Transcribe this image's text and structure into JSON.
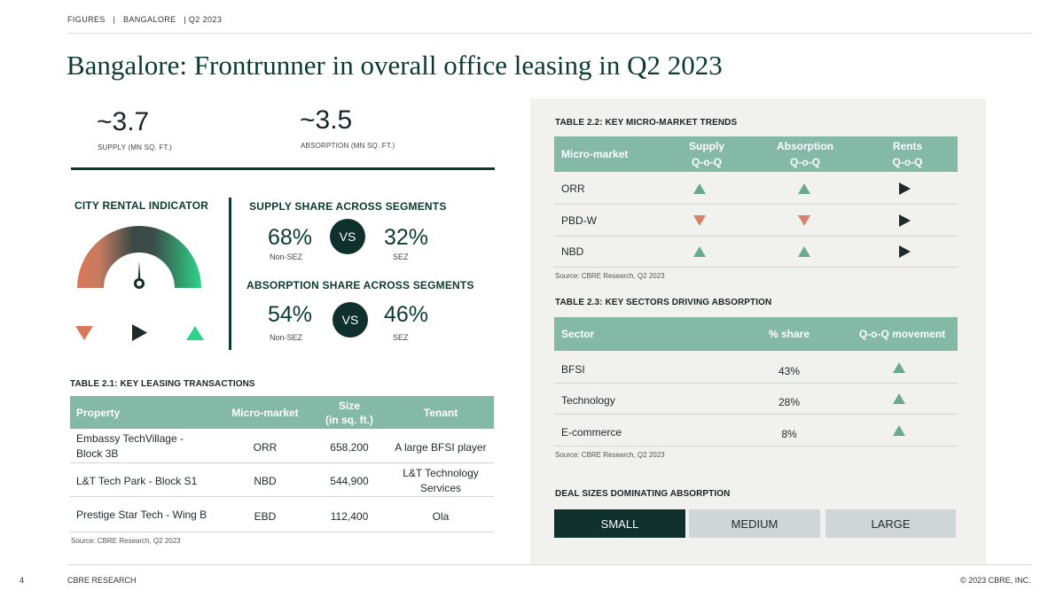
{
  "header": {
    "breadcrumb": "FIGURES   |   BANGALORE   | Q2 2023",
    "title": "Bangalore: Frontrunner in overall office leasing in Q2 2023"
  },
  "kpis": [
    {
      "value": "~3.7",
      "label": "SUPPLY (MN SQ. FT.)"
    },
    {
      "value": "~3.5",
      "label": "ABSORPTION (MN SQ. FT.)"
    }
  ],
  "rental_indicator": {
    "title": "CITY RENTAL INDICATOR",
    "colors": {
      "low": "#d9785b",
      "mid": "#3b4a47",
      "high": "#2ed38a"
    },
    "icons": [
      "down-triangle-icon",
      "right-triangle-icon",
      "up-triangle-icon"
    ]
  },
  "supply_share": {
    "title": "SUPPLY SHARE ACROSS SEGMENTS",
    "left_value": "68%",
    "left_label": "Non-SEZ",
    "vs": "VS",
    "right_value": "32%",
    "right_label": "SEZ"
  },
  "absorption_share": {
    "title": "ABSORPTION SHARE ACROSS SEGMENTS",
    "left_value": "54%",
    "left_label": "Non-SEZ",
    "vs": "VS",
    "right_value": "46%",
    "right_label": "SEZ"
  },
  "table21": {
    "title": "TABLE 2.1: KEY LEASING TRANSACTIONS",
    "headers": [
      "Property",
      "Micro-market",
      "Size\n(in sq. ft.)",
      "Tenant"
    ],
    "rows": [
      [
        "Embassy TechVillage -\nBlock 3B",
        "ORR",
        "658,200",
        "A large BFSI player"
      ],
      [
        "L&T Tech Park - Block S1",
        "NBD",
        "544,900",
        "L&T Technology\nServices"
      ],
      [
        "Prestige Star Tech - Wing B",
        "EBD",
        "112,400",
        "Ola"
      ]
    ],
    "source": "Source: CBRE Research, Q2 2023"
  },
  "table22": {
    "title": "TABLE 2.2: KEY MICRO-MARKET TRENDS",
    "headers": [
      "Micro-market",
      "Supply\nQ-o-Q",
      "Absorption\nQ-o-Q",
      "Rents\nQ-o-Q"
    ],
    "rows": [
      {
        "name": "ORR",
        "trends": [
          "up",
          "up",
          "flat"
        ]
      },
      {
        "name": "PBD-W",
        "trends": [
          "down",
          "down",
          "flat"
        ]
      },
      {
        "name": "NBD",
        "trends": [
          "up",
          "up",
          "flat"
        ]
      }
    ],
    "source": "Source: CBRE Research, Q2 2023"
  },
  "table23": {
    "title": "TABLE 2.3: KEY SECTORS DRIVING ABSORPTION",
    "headers": [
      "Sector",
      "% share",
      "Q-o-Q movement"
    ],
    "rows": [
      {
        "sector": "BFSI",
        "share": "43%",
        "movement": "up"
      },
      {
        "sector": "Technology",
        "share": "28%",
        "movement": "up"
      },
      {
        "sector": "E-commerce",
        "share": "8%",
        "movement": "up"
      }
    ],
    "source": "Source: CBRE Research, Q2 2023"
  },
  "deal_sizes": {
    "title": "DEAL SIZES DOMINATING ABSORPTION",
    "options": [
      "SMALL",
      "MEDIUM",
      "LARGE"
    ],
    "selected": "SMALL"
  },
  "footer": {
    "page": "4",
    "left": "CBRE RESEARCH",
    "right": "© 2023 CBRE, INC."
  },
  "colors": {
    "up": "#6aaa92",
    "down": "#d9826a",
    "flat": "#1f2a2a",
    "table_header": "#84b9a8",
    "dark": "#10302d"
  }
}
